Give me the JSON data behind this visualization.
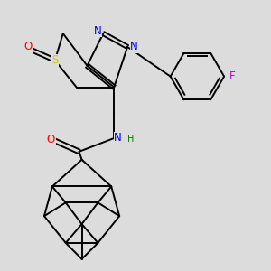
{
  "background_color": "#dcdcdc",
  "fig_size": [
    3.0,
    3.0
  ],
  "dpi": 100,
  "atom_colors": {
    "C": "#000000",
    "N": "#0000ee",
    "O": "#ff0000",
    "S": "#cccc00",
    "F": "#cc00cc",
    "H": "#007700"
  }
}
